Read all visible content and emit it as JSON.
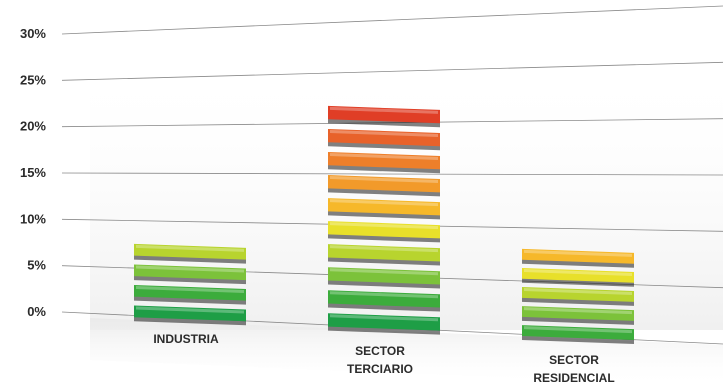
{
  "chart_data": {
    "type": "bar",
    "categories": [
      "INDUSTRIA",
      "SECTOR TERCIARIO",
      "SECTOR RESIDENCIAL"
    ],
    "category_label_lines": [
      [
        "INDUSTRIA"
      ],
      [
        "SECTOR",
        "TERCIARIO"
      ],
      [
        "SECTOR",
        "RESIDENCIAL"
      ]
    ],
    "values": [
      8.5,
      22.5,
      8.8
    ],
    "yticks": [
      "0%",
      "5%",
      "10%",
      "15%",
      "20%",
      "25%",
      "30%"
    ],
    "ytick_values": [
      0,
      5,
      10,
      15,
      20,
      25,
      30
    ],
    "ylim": [
      0,
      30
    ],
    "segments_per_bar": [
      4,
      10,
      5
    ],
    "title": "",
    "xlabel": "",
    "ylabel": "",
    "grid": true,
    "legend": "none",
    "segment_colors": [
      "#1e9e46",
      "#3cac3c",
      "#7cc23a",
      "#b8d42e",
      "#e8e02a",
      "#f6b82a",
      "#f29a2a",
      "#ee7f2a",
      "#e8622a",
      "#e03e26"
    ]
  }
}
